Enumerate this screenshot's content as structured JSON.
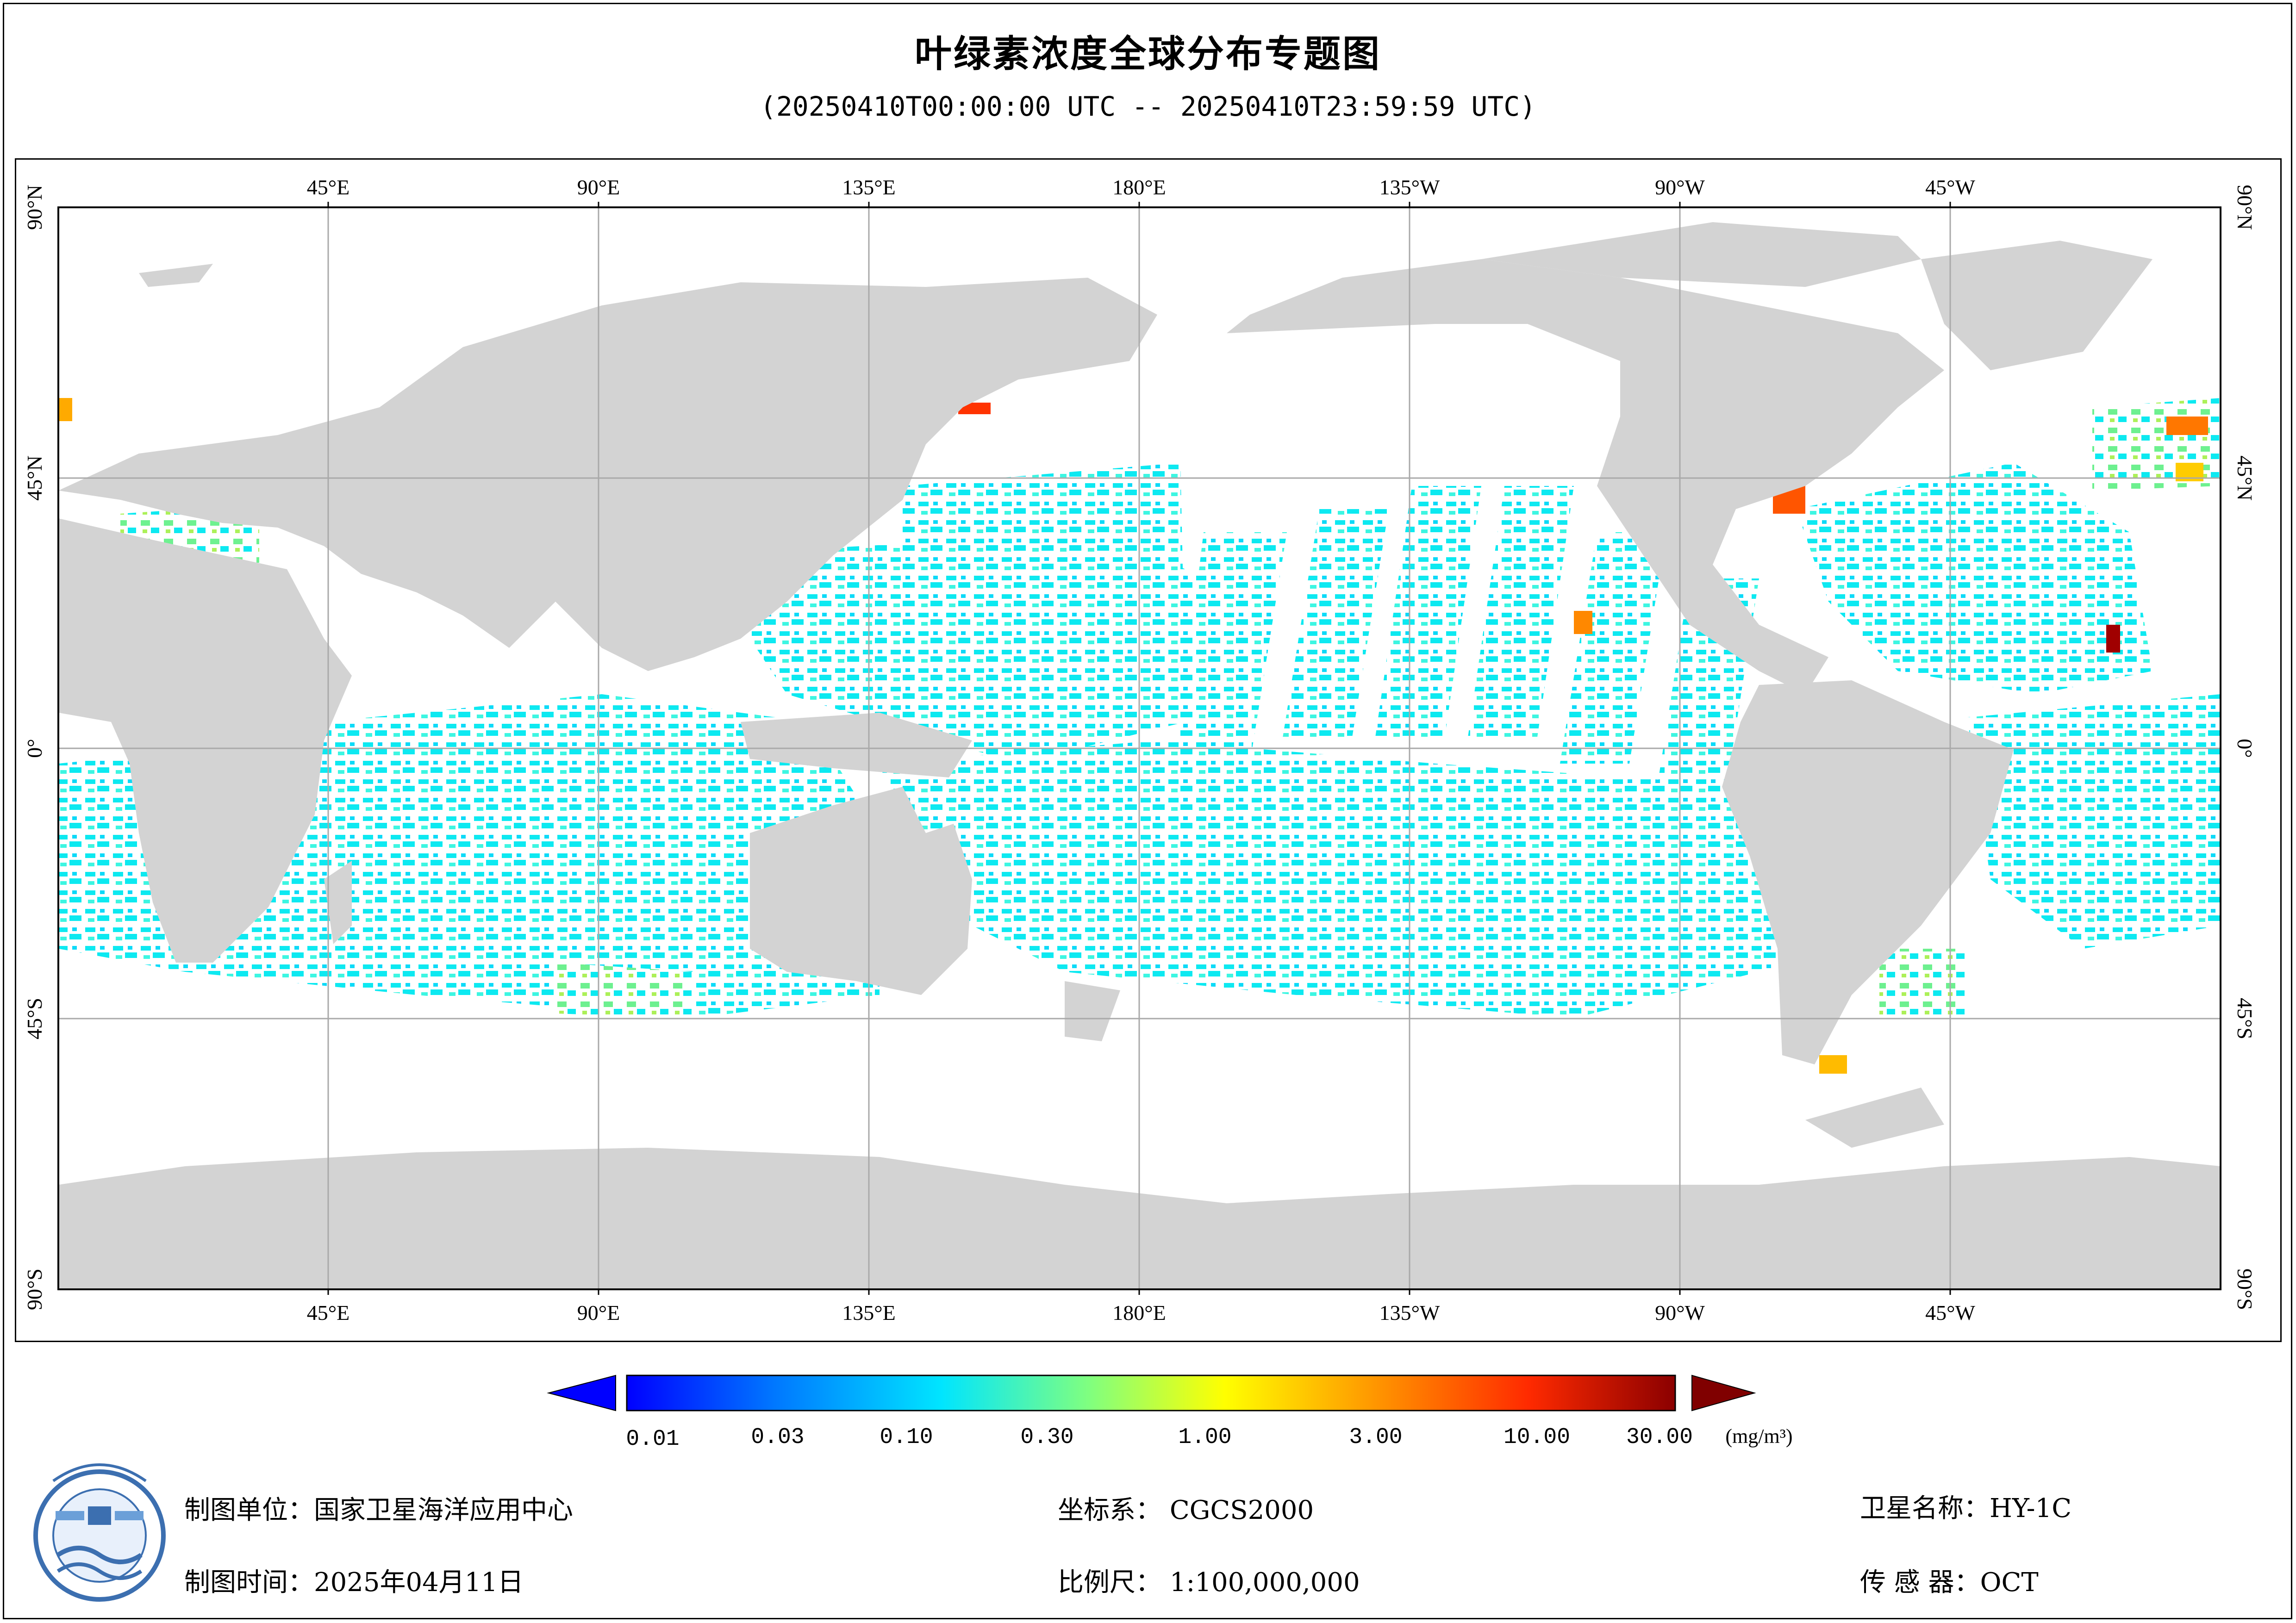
{
  "title": "叶绿素浓度全球分布专题图",
  "subtitle": "(20250410T00:00:00 UTC -- 20250410T23:59:59 UTC)",
  "map": {
    "longitude_labels": [
      "45°E",
      "90°E",
      "135°E",
      "180°E",
      "135°W",
      "90°W",
      "45°W"
    ],
    "latitude_labels": [
      "90°N",
      "45°N",
      "0°",
      "45°S",
      "90°S"
    ],
    "land_color": "#d3d3d3",
    "ocean_color": "#ffffff",
    "grid_color": "#a9a9a9"
  },
  "legend": {
    "ticks": [
      "0.01",
      "0.03",
      "0.10",
      "0.30",
      "1.00",
      "3.00",
      "10.00",
      "30.00"
    ],
    "unit": "(mg/m³)",
    "colors": [
      "#0000ff",
      "#0077ff",
      "#00e5ff",
      "#7fff80",
      "#ffff00",
      "#ff9900",
      "#ff2a00",
      "#8b0000"
    ],
    "low_arrow_color": "#0000ff",
    "high_arrow_color": "#800000"
  },
  "footer": {
    "unit_label": "制图单位：",
    "unit_value": "国家卫星海洋应用中心",
    "time_label": "制图时间：",
    "time_value": "2025年04月11日",
    "crs_label": "坐标系：",
    "crs_value": "CGCS2000",
    "scale_label": "比例尺：",
    "scale_value": "1:100,000,000",
    "satellite_label": "卫星名称：",
    "satellite_value": "HY-1C",
    "sensor_label": "传 感 器：",
    "sensor_value": "OCT"
  }
}
